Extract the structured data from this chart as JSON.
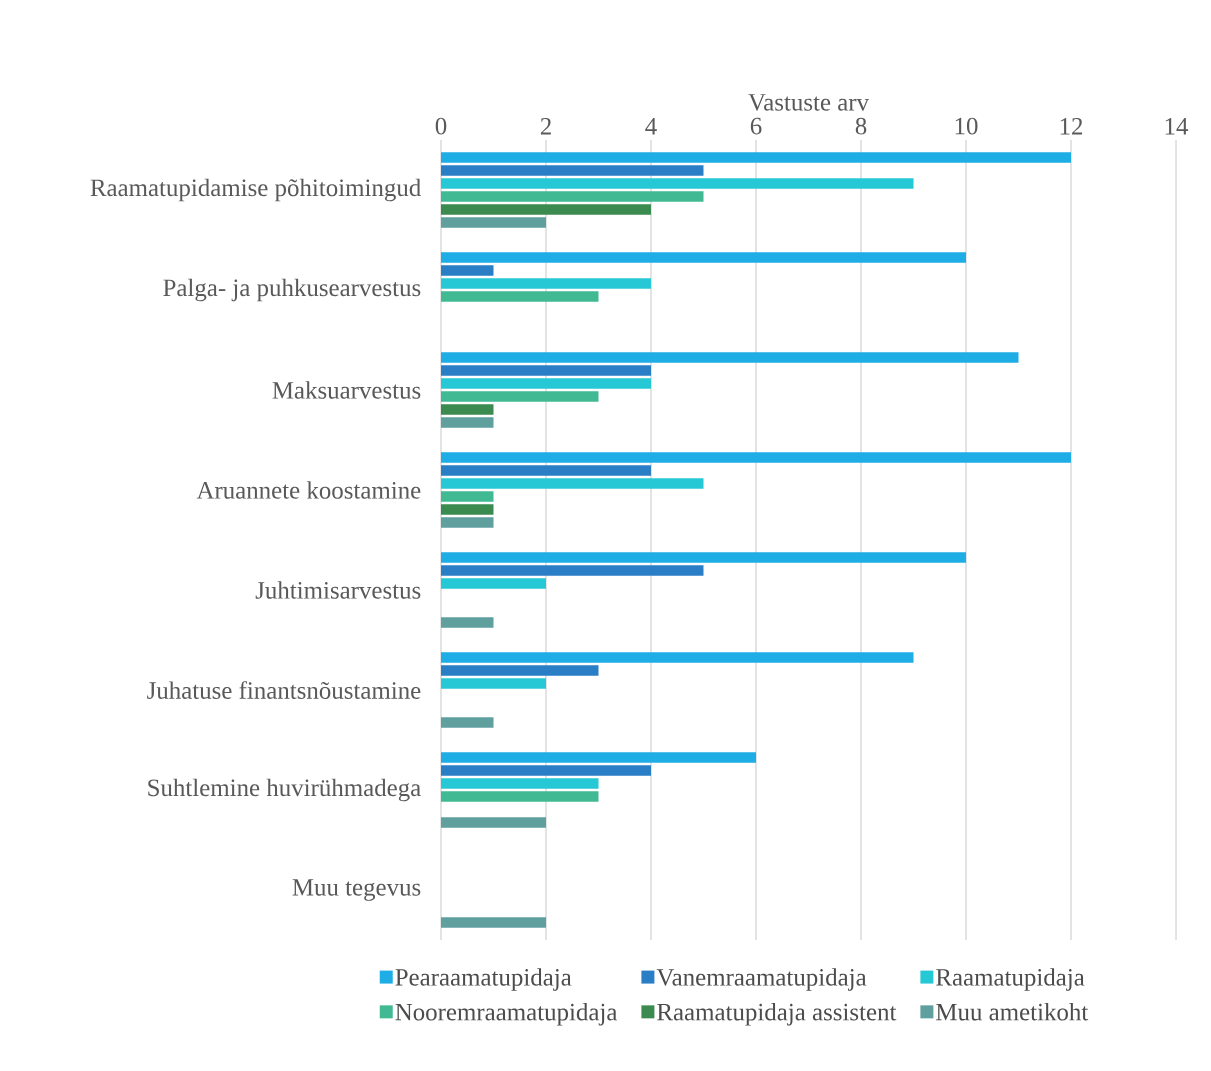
{
  "chart_data": {
    "type": "bar",
    "orientation": "horizontal",
    "xlabel": "Vastuste arv",
    "categories": [
      "Raamatupidamise põhitoimingud",
      "Palga- ja puhkusearvestus",
      "Maksuarvestus",
      "Aruannete koostamine",
      "Juhtimisarvestus",
      "Juhatuse finantsnõustamine",
      "Suhtlemine huvirühmadega",
      "Muu tegevus"
    ],
    "series": [
      {
        "name": "Pearaamatupidaja",
        "color": "#1fade5",
        "values": [
          12,
          10,
          11,
          12,
          10,
          9,
          6,
          0
        ]
      },
      {
        "name": "Vanemraamatupidaja",
        "color": "#2a7ec6",
        "values": [
          5,
          1,
          4,
          4,
          5,
          3,
          4,
          0
        ]
      },
      {
        "name": "Raamatupidaja",
        "color": "#27c8d6",
        "values": [
          9,
          4,
          4,
          5,
          2,
          2,
          3,
          0
        ]
      },
      {
        "name": "Nooremraamatupidaja",
        "color": "#41ba93",
        "values": [
          5,
          3,
          3,
          1,
          0,
          0,
          3,
          0
        ]
      },
      {
        "name": "Raamatupidaja assistent",
        "color": "#3b8a4f",
        "values": [
          4,
          0,
          1,
          1,
          0,
          0,
          0,
          0
        ]
      },
      {
        "name": "Muu ametikoht",
        "color": "#5f9f9e",
        "values": [
          2,
          0,
          1,
          1,
          1,
          1,
          2,
          2
        ]
      }
    ],
    "xlim": [
      0,
      14
    ],
    "xticks": [
      0,
      2,
      4,
      6,
      8,
      10,
      12,
      14
    ],
    "grid": "x",
    "legend": "bottom"
  }
}
